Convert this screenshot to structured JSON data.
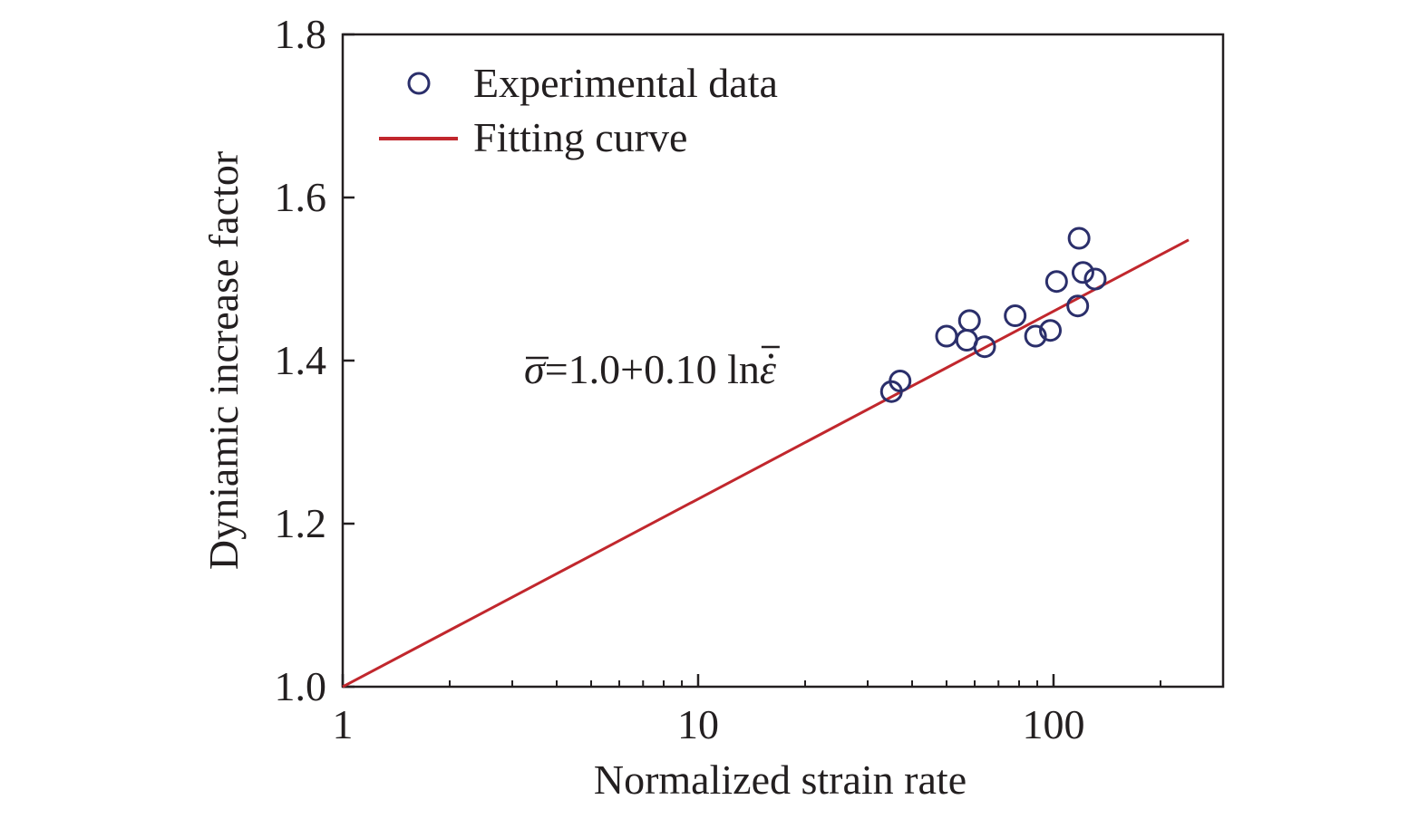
{
  "chart_data": {
    "type": "scatter",
    "xscale": "log",
    "xlim": [
      1,
      300
    ],
    "ylim": [
      1.0,
      1.8
    ],
    "xlabel": "Normalized strain rate",
    "ylabel": "Dyniamic increase factor",
    "xticks": [
      {
        "value": 1,
        "label": "1"
      },
      {
        "value": 10,
        "label": "10"
      },
      {
        "value": 100,
        "label": "100"
      }
    ],
    "yticks": [
      {
        "value": 1.0,
        "label": "1.0"
      },
      {
        "value": 1.2,
        "label": "1.2"
      },
      {
        "value": 1.4,
        "label": "1.4"
      },
      {
        "value": 1.6,
        "label": "1.6"
      },
      {
        "value": 1.8,
        "label": "1.8"
      }
    ],
    "legend_position": "top-left",
    "grid": false,
    "series": [
      {
        "name": "Experimental data",
        "kind": "scatter",
        "marker": "open-circle",
        "color": "#2b2f6b",
        "points": [
          {
            "x": 35,
            "y": 1.362
          },
          {
            "x": 37,
            "y": 1.375
          },
          {
            "x": 50,
            "y": 1.43
          },
          {
            "x": 57,
            "y": 1.425
          },
          {
            "x": 58,
            "y": 1.449
          },
          {
            "x": 64,
            "y": 1.417
          },
          {
            "x": 78,
            "y": 1.455
          },
          {
            "x": 89,
            "y": 1.43
          },
          {
            "x": 98,
            "y": 1.437
          },
          {
            "x": 102,
            "y": 1.497
          },
          {
            "x": 117,
            "y": 1.467
          },
          {
            "x": 118,
            "y": 1.55
          },
          {
            "x": 121,
            "y": 1.508
          },
          {
            "x": 131,
            "y": 1.5
          }
        ]
      },
      {
        "name": "Fitting curve",
        "kind": "line",
        "color": "#c1272d",
        "points": [
          {
            "x": 1,
            "y": 1.0
          },
          {
            "x": 240,
            "y": 1.548
          }
        ]
      }
    ],
    "annotation": {
      "prefix": "σ",
      "middle": "=1.0+0.10 ln",
      "suffix": "ε"
    }
  }
}
